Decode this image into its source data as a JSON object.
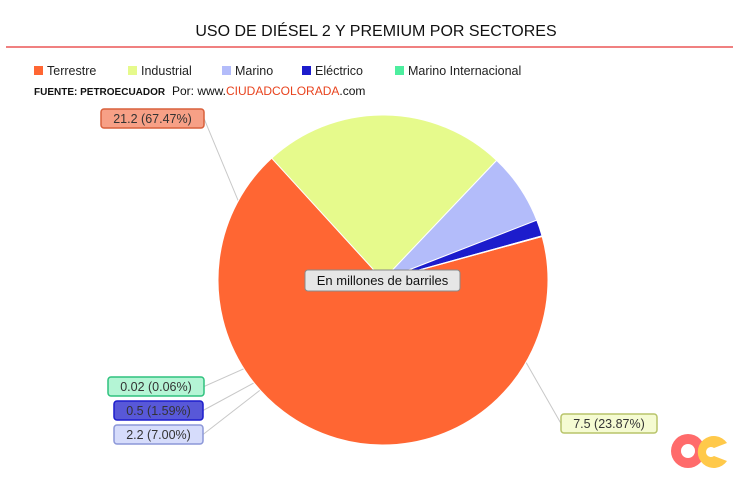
{
  "chart_data": {
    "type": "pie",
    "title": "USO DE DIÉSEL 2 Y PREMIUM POR SECTORES",
    "center_label": "En millones de barriles",
    "source": "FUENTE: PETROECUADOR",
    "credit_prefix": "Por: www.",
    "credit_site": "CIUDADCOLORADA",
    "credit_suffix": ".com",
    "legend_position": "top-left",
    "slices": [
      {
        "name": "Terrestre",
        "value": 21.2,
        "percent": 67.47,
        "label": "21.2 (67.47%)",
        "color": "#ff6633"
      },
      {
        "name": "Industrial",
        "value": 7.5,
        "percent": 23.87,
        "label": "7.5 (23.87%)",
        "color": "#e6fa8c"
      },
      {
        "name": "Marino",
        "value": 2.2,
        "percent": 7.0,
        "label": "2.2 (7.00%)",
        "color": "#b3bcfa"
      },
      {
        "name": "Eléctrico",
        "value": 0.5,
        "percent": 1.59,
        "label": "0.5 (1.59%)",
        "color": "#1c1ccc"
      },
      {
        "name": "Marino Internacional",
        "value": 0.02,
        "percent": 0.06,
        "label": "0.02 (0.06%)",
        "color": "#4dee9f"
      }
    ],
    "label_styles": [
      {
        "fill": "#f7a086",
        "stroke": "#d9603c"
      },
      {
        "fill": "#f5fbd2",
        "stroke": "#b8c46a"
      },
      {
        "fill": "#d6dcfb",
        "stroke": "#8c97d8"
      },
      {
        "fill": "#5858d8",
        "stroke": "#1c1ccc"
      },
      {
        "fill": "#b4f5d5",
        "stroke": "#2fc27e"
      }
    ],
    "colors": {
      "title_rule": "#f08080",
      "logo_coral": "#ff6b6b",
      "logo_yellow": "#ffc94a"
    }
  }
}
